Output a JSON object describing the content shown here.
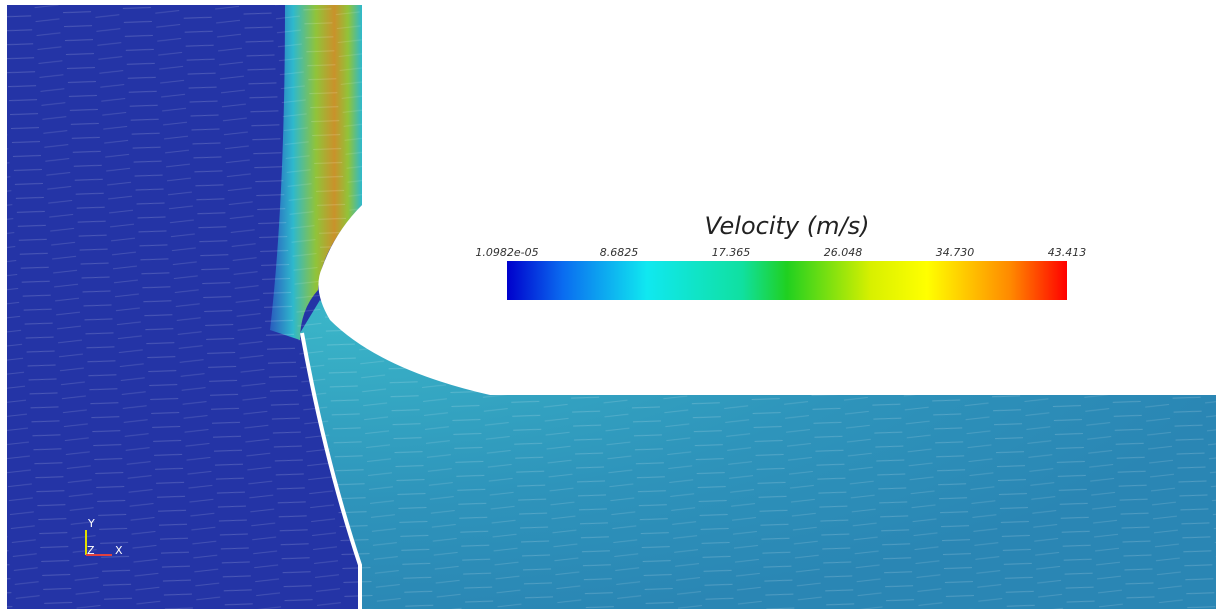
{
  "legend": {
    "title": "Velocity (m/s)",
    "ticks": [
      "1.0982e-05",
      "8.6825",
      "17.365",
      "26.048",
      "34.730",
      "43.413"
    ]
  },
  "axes": {
    "y": "Y",
    "z": "Z",
    "x": "X"
  }
}
